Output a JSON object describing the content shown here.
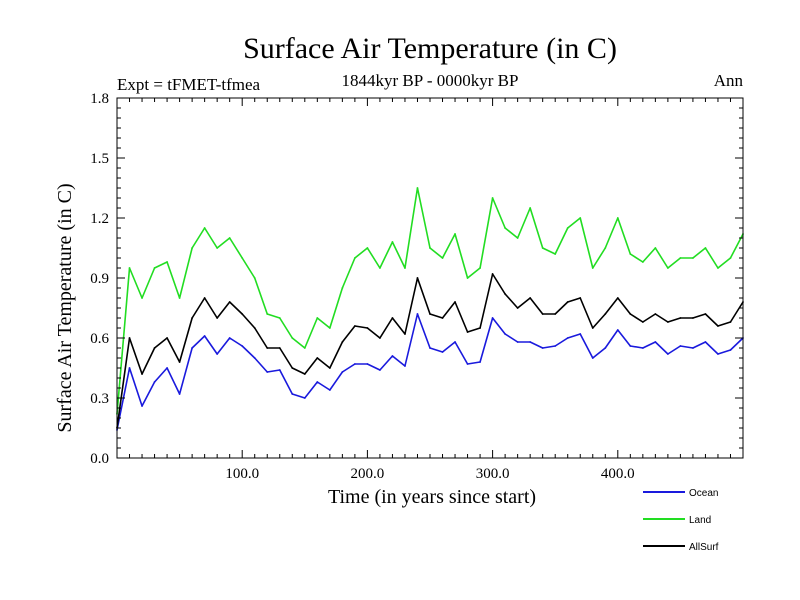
{
  "chart_data": {
    "type": "line",
    "title": "Surface Air Temperature (in C)",
    "subtitle": "1844kyr BP - 0000kyr BP",
    "experiment_label": "Expt = tFMET-tfmea",
    "season_label": "Ann",
    "xlabel": "Time (in years since start)",
    "ylabel": "Surface Air Temperature (in C)",
    "xlim": [
      0,
      500
    ],
    "ylim": [
      0.0,
      1.8
    ],
    "x_ticks": [
      100,
      200,
      300,
      400
    ],
    "x_tick_labels": [
      "100.0",
      "200.0",
      "300.0",
      "400.0"
    ],
    "y_ticks": [
      0.0,
      0.3,
      0.6,
      0.9,
      1.2,
      1.5,
      1.8
    ],
    "y_tick_labels": [
      "0.0",
      "0.3",
      "0.6",
      "0.9",
      "1.2",
      "1.5",
      "1.8"
    ],
    "legend_position": "bottom-right, below plot",
    "series": [
      {
        "name": "Ocean",
        "color": "#1a1add",
        "x": [
          0,
          10,
          20,
          30,
          40,
          50,
          60,
          70,
          80,
          90,
          100,
          110,
          120,
          130,
          140,
          150,
          160,
          170,
          180,
          190,
          200,
          210,
          220,
          230,
          240,
          250,
          260,
          270,
          280,
          290,
          300,
          310,
          320,
          330,
          340,
          350,
          360,
          370,
          380,
          390,
          400,
          410,
          420,
          430,
          440,
          450,
          460,
          470,
          480,
          490,
          500
        ],
        "values": [
          0.14,
          0.45,
          0.26,
          0.38,
          0.45,
          0.32,
          0.55,
          0.61,
          0.52,
          0.6,
          0.56,
          0.5,
          0.43,
          0.44,
          0.32,
          0.3,
          0.38,
          0.34,
          0.43,
          0.47,
          0.47,
          0.44,
          0.51,
          0.46,
          0.72,
          0.55,
          0.53,
          0.58,
          0.47,
          0.48,
          0.7,
          0.62,
          0.58,
          0.58,
          0.55,
          0.56,
          0.6,
          0.62,
          0.5,
          0.55,
          0.64,
          0.56,
          0.55,
          0.58,
          0.52,
          0.56,
          0.55,
          0.58,
          0.52,
          0.54,
          0.6
        ]
      },
      {
        "name": "Land",
        "color": "#22dd22",
        "x": [
          0,
          10,
          20,
          30,
          40,
          50,
          60,
          70,
          80,
          90,
          100,
          110,
          120,
          130,
          140,
          150,
          160,
          170,
          180,
          190,
          200,
          210,
          220,
          230,
          240,
          250,
          260,
          270,
          280,
          290,
          300,
          310,
          320,
          330,
          340,
          350,
          360,
          370,
          380,
          390,
          400,
          410,
          420,
          430,
          440,
          450,
          460,
          470,
          480,
          490,
          500
        ],
        "values": [
          0.22,
          0.95,
          0.8,
          0.95,
          0.98,
          0.8,
          1.05,
          1.15,
          1.05,
          1.1,
          1.0,
          0.9,
          0.72,
          0.7,
          0.6,
          0.55,
          0.7,
          0.65,
          0.85,
          1.0,
          1.05,
          0.95,
          1.08,
          0.95,
          1.35,
          1.05,
          1.0,
          1.12,
          0.9,
          0.95,
          1.3,
          1.15,
          1.1,
          1.25,
          1.05,
          1.02,
          1.15,
          1.2,
          0.95,
          1.05,
          1.2,
          1.02,
          0.98,
          1.05,
          0.95,
          1.0,
          1.0,
          1.05,
          0.95,
          1.0,
          1.12
        ]
      },
      {
        "name": "AllSurf",
        "color": "#000000",
        "x": [
          0,
          10,
          20,
          30,
          40,
          50,
          60,
          70,
          80,
          90,
          100,
          110,
          120,
          130,
          140,
          150,
          160,
          170,
          180,
          190,
          200,
          210,
          220,
          230,
          240,
          250,
          260,
          270,
          280,
          290,
          300,
          310,
          320,
          330,
          340,
          350,
          360,
          370,
          380,
          390,
          400,
          410,
          420,
          430,
          440,
          450,
          460,
          470,
          480,
          490,
          500
        ],
        "values": [
          0.15,
          0.6,
          0.42,
          0.55,
          0.6,
          0.48,
          0.7,
          0.8,
          0.7,
          0.78,
          0.72,
          0.65,
          0.55,
          0.55,
          0.45,
          0.42,
          0.5,
          0.45,
          0.58,
          0.66,
          0.65,
          0.6,
          0.7,
          0.62,
          0.9,
          0.72,
          0.7,
          0.78,
          0.63,
          0.65,
          0.92,
          0.82,
          0.75,
          0.8,
          0.72,
          0.72,
          0.78,
          0.8,
          0.65,
          0.72,
          0.8,
          0.72,
          0.68,
          0.72,
          0.68,
          0.7,
          0.7,
          0.72,
          0.66,
          0.68,
          0.78
        ]
      }
    ]
  }
}
